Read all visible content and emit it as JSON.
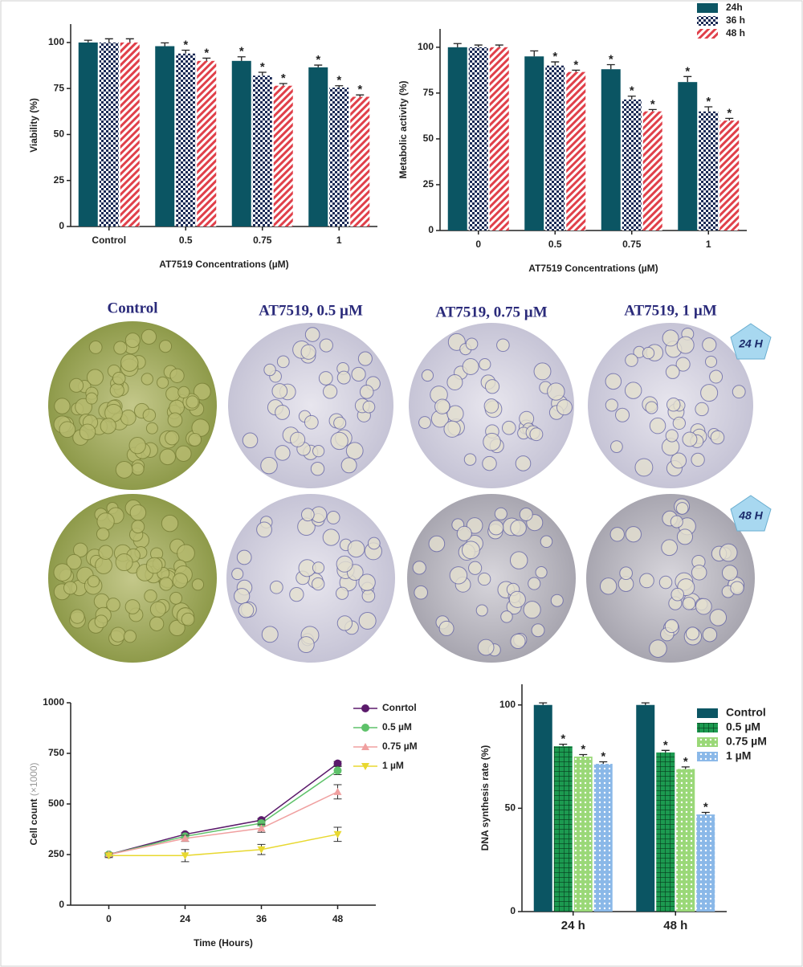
{
  "chart_data": [
    {
      "type": "bar",
      "ylabel": "Viability (%)",
      "xlabel": "AT7519 Concentrations (µM)",
      "categories": [
        "Control",
        "0.5",
        "0.75",
        "1"
      ],
      "ylim": [
        0,
        110
      ],
      "yticks": [
        0,
        25,
        50,
        75,
        100
      ],
      "series": [
        {
          "color": "#0b5563",
          "values": [
            100,
            98,
            90,
            86.5
          ],
          "errors": [
            1.2,
            1.8,
            2.2,
            1.2
          ],
          "markers": [
            null,
            null,
            "*",
            "*"
          ]
        },
        {
          "color": "#1a2a55",
          "pattern": "checker",
          "values": [
            100,
            94,
            82,
            75.5
          ],
          "errors": [
            2,
            1.8,
            1.8,
            1
          ],
          "markers": [
            null,
            "*",
            "*",
            "*"
          ]
        },
        {
          "color": "#e0404a",
          "pattern": "stripes",
          "values": [
            100,
            90,
            76.5,
            70.5
          ],
          "errors": [
            2,
            1.5,
            1.2,
            1
          ],
          "markers": [
            null,
            "*",
            "*",
            "*"
          ]
        }
      ]
    },
    {
      "type": "bar",
      "ylabel": "Metabolic activity (%)",
      "xlabel": "AT7519 Concentrations (µM)",
      "categories": [
        "0",
        "0.5",
        "0.75",
        "1"
      ],
      "ylim": [
        0,
        110
      ],
      "yticks": [
        0,
        25,
        50,
        75,
        100
      ],
      "legend": "top-right",
      "series": [
        {
          "name": "24h",
          "color": "#0b5563",
          "values": [
            100,
            95,
            88,
            81
          ],
          "errors": [
            2,
            3,
            2.5,
            3
          ],
          "markers": [
            null,
            null,
            "*",
            "*"
          ]
        },
        {
          "name": "36 h",
          "color": "#1a2a55",
          "pattern": "checker",
          "values": [
            100,
            90,
            71.5,
            65
          ],
          "errors": [
            1.2,
            2,
            1.8,
            2.5
          ],
          "markers": [
            null,
            "*",
            "*",
            "*"
          ]
        },
        {
          "name": "48 h",
          "color": "#e0404a",
          "pattern": "stripes",
          "values": [
            100,
            86.5,
            65,
            60
          ],
          "errors": [
            1.2,
            1,
            1,
            1.2
          ],
          "markers": [
            null,
            "*",
            "*",
            "*"
          ]
        }
      ]
    },
    {
      "type": "line",
      "ylabel": "Cell count",
      "ylabel_unit": "(×1000)",
      "xlabel": "Time (Hours)",
      "categories": [
        "0",
        "24",
        "36",
        "48"
      ],
      "ylim": [
        0,
        1000
      ],
      "yticks": [
        0,
        250,
        500,
        750,
        1000
      ],
      "legend": "top-right",
      "series": [
        {
          "name": "Conrtol",
          "color": "#5b1a6b",
          "marker": "circle",
          "values": [
            250,
            350,
            420,
            700
          ],
          "errors": [
            8,
            8,
            8,
            10
          ]
        },
        {
          "name": "0.5 µM",
          "color": "#5ec26a",
          "marker": "circle",
          "values": [
            250,
            340,
            405,
            665
          ],
          "errors": [
            8,
            10,
            12,
            20
          ]
        },
        {
          "name": "0.75 µM",
          "color": "#f0a0a0",
          "marker": "triangle",
          "values": [
            250,
            330,
            380,
            560
          ],
          "errors": [
            10,
            15,
            20,
            35
          ]
        },
        {
          "name": "1 µM",
          "color": "#e8d830",
          "marker": "triangle-down",
          "values": [
            245,
            245,
            275,
            350
          ],
          "errors": [
            10,
            30,
            25,
            35
          ]
        }
      ]
    },
    {
      "type": "bar",
      "ylabel": "DNA synthesis rate (%)",
      "categories": [
        "24 h",
        "48 h"
      ],
      "ylim": [
        0,
        110
      ],
      "yticks": [
        0,
        50,
        100
      ],
      "legend": "top-right",
      "series": [
        {
          "name": "Control",
          "color": "#0b5563",
          "values": [
            100,
            100
          ],
          "errors": [
            1,
            1
          ],
          "markers": [
            null,
            null
          ]
        },
        {
          "name": "0.5 µM",
          "color": "#1c9a50",
          "pattern": "grid",
          "values": [
            80,
            77
          ],
          "errors": [
            1,
            1
          ],
          "markers": [
            "*",
            "*"
          ]
        },
        {
          "name": "0.75 µM",
          "color": "#9ad878",
          "pattern": "dots",
          "values": [
            75,
            69
          ],
          "errors": [
            1,
            1
          ],
          "markers": [
            "*",
            "*"
          ]
        },
        {
          "name": "1 µM",
          "color": "#8ab8e8",
          "pattern": "dots",
          "values": [
            71.5,
            47
          ],
          "errors": [
            1,
            1
          ],
          "markers": [
            "*",
            "*"
          ]
        }
      ]
    }
  ],
  "micrographs": {
    "columns": [
      "Control",
      "AT7519, 0.5 µM",
      "AT7519, 0.75 µM",
      "AT7519, 1 µM"
    ],
    "rows": [
      "24 H",
      "48 H"
    ]
  }
}
